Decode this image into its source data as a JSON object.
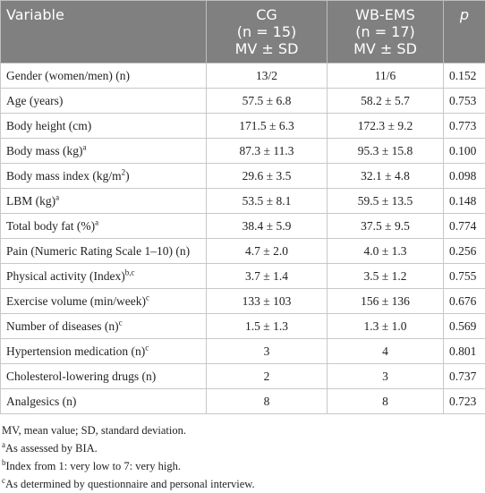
{
  "table": {
    "header": [
      {
        "lines": [
          "Variable"
        ]
      },
      {
        "lines": [
          "CG",
          "(n = 15)",
          "MV ± SD"
        ]
      },
      {
        "lines": [
          "WB-EMS",
          "(n = 17)",
          "MV ± SD"
        ]
      },
      {
        "lines": [
          "p"
        ]
      }
    ],
    "rows": [
      {
        "variable": [
          {
            "text": "Gender (women/men) (n)"
          }
        ],
        "cg": "13/2",
        "wb": "11/6",
        "p": "0.152"
      },
      {
        "variable": [
          {
            "text": "Age (years)"
          }
        ],
        "cg": "57.5 ± 6.8",
        "wb": "58.2 ± 5.7",
        "p": "0.753"
      },
      {
        "variable": [
          {
            "text": "Body height (cm)"
          }
        ],
        "cg": "171.5 ± 6.3",
        "wb": "172.3 ± 9.2",
        "p": "0.773"
      },
      {
        "variable": [
          {
            "text": "Body mass (kg)"
          },
          {
            "text": "a",
            "sup": true
          }
        ],
        "cg": "87.3 ± 11.3",
        "wb": "95.3 ± 15.8",
        "p": "0.100"
      },
      {
        "variable": [
          {
            "text": "Body mass index (kg/m"
          },
          {
            "text": "2",
            "sup": true
          },
          {
            "text": ")"
          }
        ],
        "cg": "29.6 ± 3.5",
        "wb": "32.1 ± 4.8",
        "p": "0.098"
      },
      {
        "variable": [
          {
            "text": "LBM (kg)"
          },
          {
            "text": "a",
            "sup": true
          }
        ],
        "cg": "53.5 ± 8.1",
        "wb": "59.5 ± 13.5",
        "p": "0.148"
      },
      {
        "variable": [
          {
            "text": "Total body fat (%)"
          },
          {
            "text": "a",
            "sup": true
          }
        ],
        "cg": "38.4 ± 5.9",
        "wb": "37.5 ± 9.5",
        "p": "0.774"
      },
      {
        "variable": [
          {
            "text": "Pain (Numeric Rating Scale 1–10) (n)"
          }
        ],
        "cg": "4.7 ± 2.0",
        "wb": "4.0 ± 1.3",
        "p": "0.256"
      },
      {
        "variable": [
          {
            "text": "Physical activity (Index)"
          },
          {
            "text": "b,c",
            "sup": true
          }
        ],
        "cg": "3.7 ± 1.4",
        "wb": "3.5 ± 1.2",
        "p": "0.755"
      },
      {
        "variable": [
          {
            "text": "Exercise volume (min/week)"
          },
          {
            "text": "c",
            "sup": true
          }
        ],
        "cg": "133 ± 103",
        "wb": "156 ± 136",
        "p": "0.676"
      },
      {
        "variable": [
          {
            "text": "Number of diseases (n)"
          },
          {
            "text": "c",
            "sup": true
          }
        ],
        "cg": "1.5 ± 1.3",
        "wb": "1.3 ± 1.0",
        "p": "0.569"
      },
      {
        "variable": [
          {
            "text": "Hypertension medication (n)"
          },
          {
            "text": "c",
            "sup": true
          }
        ],
        "cg": "3",
        "wb": "4",
        "p": "0.801"
      },
      {
        "variable": [
          {
            "text": "Cholesterol-lowering drugs (n)"
          }
        ],
        "cg": "2",
        "wb": "3",
        "p": "0.737"
      },
      {
        "variable": [
          {
            "text": "Analgesics (n)"
          }
        ],
        "cg": "8",
        "wb": "8",
        "p": "0.723"
      }
    ]
  },
  "footnotes": {
    "abbreviations": "MV, mean value; SD, standard deviation.",
    "notes": [
      {
        "mark": "a",
        "text": "As assessed by BIA."
      },
      {
        "mark": "b",
        "text": "Index from 1: very low to 7: very high."
      },
      {
        "mark": "c",
        "text": "As determined by questionnaire and personal interview."
      }
    ]
  }
}
